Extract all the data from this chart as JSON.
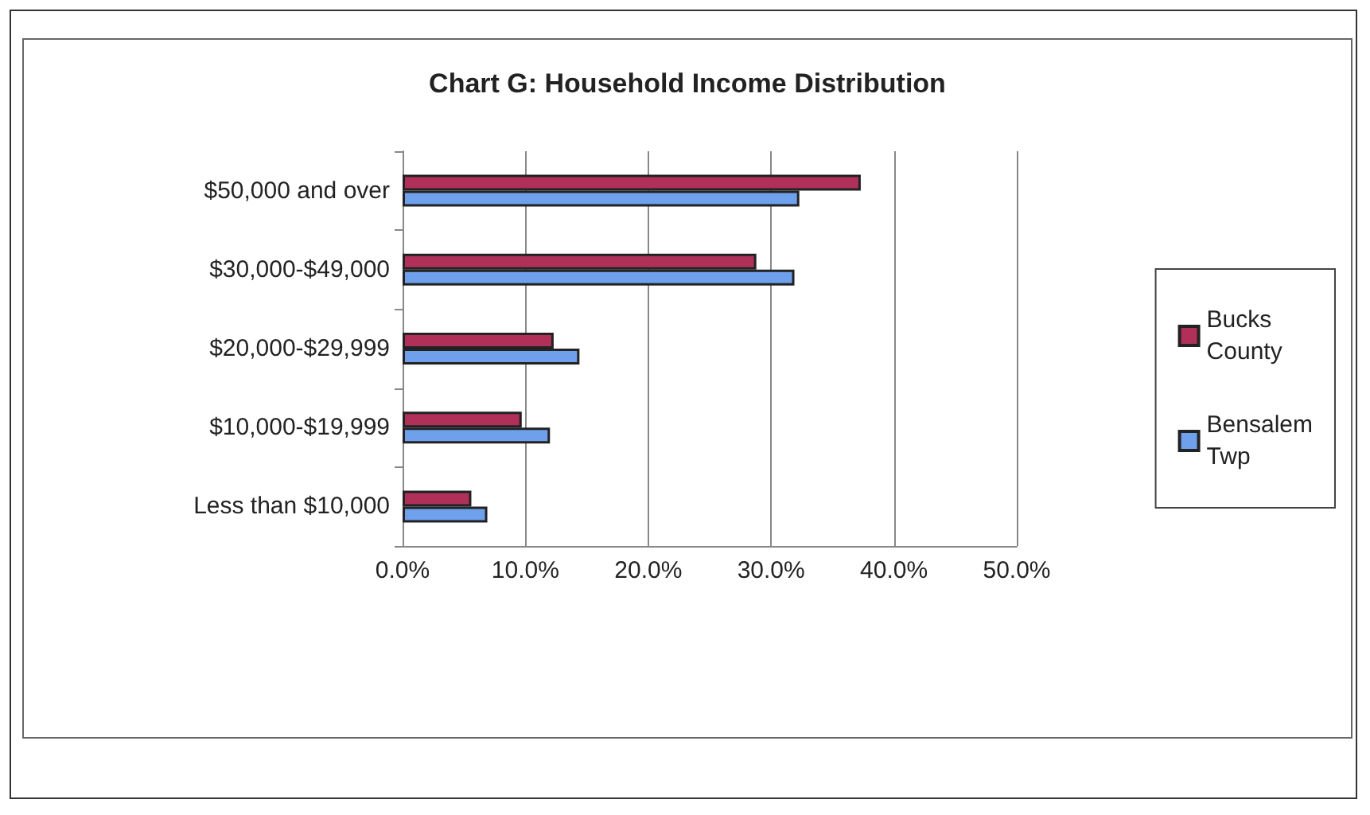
{
  "chart_data": {
    "type": "bar",
    "orientation": "horizontal",
    "title": "Chart G: Household Income Distribution",
    "categories": [
      "$50,000 and over",
      "$30,000-$49,000",
      "$20,000-$29,999",
      "$10,000-$19,999",
      "Less than $10,000"
    ],
    "series": [
      {
        "name": "Bucks County",
        "color": "#b0305a",
        "values": [
          37.3,
          28.8,
          12.3,
          9.7,
          5.6
        ]
      },
      {
        "name": "Bensalem Twp",
        "color": "#6fa0ec",
        "values": [
          32.3,
          31.9,
          14.4,
          12.0,
          6.9
        ]
      }
    ],
    "xlim": [
      0,
      50
    ],
    "xticks": [
      {
        "value": 0,
        "label": "0.0%"
      },
      {
        "value": 10,
        "label": "10.0%"
      },
      {
        "value": 20,
        "label": "20.0%"
      },
      {
        "value": 30,
        "label": "30.0%"
      },
      {
        "value": 40,
        "label": "40.0%"
      },
      {
        "value": 50,
        "label": "50.0%"
      }
    ],
    "grid": "x",
    "legend": "right"
  }
}
